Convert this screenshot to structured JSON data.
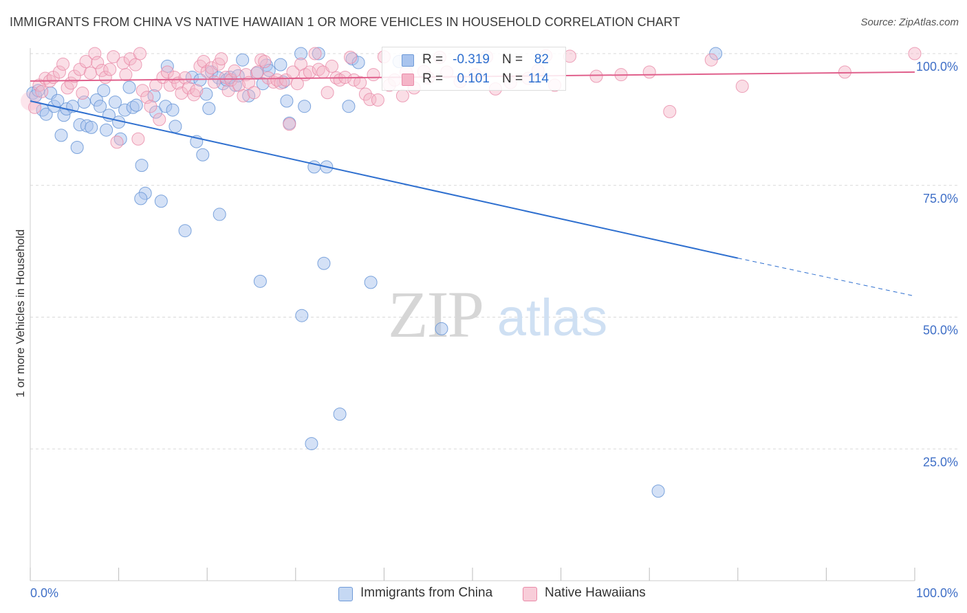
{
  "header": {
    "title": "IMMIGRANTS FROM CHINA VS NATIVE HAWAIIAN 1 OR MORE VEHICLES IN HOUSEHOLD CORRELATION CHART",
    "source": "Source: ZipAtlas.com"
  },
  "watermark": {
    "zip": "ZIP",
    "atlas": "atlas"
  },
  "legend": {
    "r_label": "R =",
    "n_label": "N =",
    "rows": [
      {
        "r": "-0.319",
        "n": "82"
      },
      {
        "r": "0.101",
        "n": "114"
      }
    ]
  },
  "bottom_legend": [
    "Immigrants from China",
    "Native Hawaiians"
  ],
  "colors": {
    "blue_fill": "#a9c4ee",
    "blue_stroke": "#6e9ad8",
    "blue_line": "#2e6fcf",
    "pink_fill": "#f5b5c8",
    "pink_stroke": "#e98aa8",
    "pink_line": "#e0608c",
    "axis_text": "#3f6fc7",
    "grid": "#d9d9d9"
  },
  "chart_data": {
    "type": "scatter",
    "title": "IMMIGRANTS FROM CHINA VS NATIVE HAWAIIAN 1 OR MORE VEHICLES IN HOUSEHOLD CORRELATION CHART",
    "xlabel": "",
    "ylabel": "1 or more Vehicles in Household",
    "xlim": [
      0,
      100
    ],
    "ylim": [
      0,
      104
    ],
    "x_tick_labels": [
      "0.0%",
      "100.0%"
    ],
    "y_ticks": [
      25,
      50,
      75,
      100
    ],
    "y_tick_labels": [
      "25.0%",
      "50.0%",
      "75.0%",
      "100.0%"
    ],
    "grid": "horizontal-dashed",
    "legend_position": "top-center",
    "series": [
      {
        "name": "Immigrants from China",
        "r": -0.319,
        "n": 82,
        "trend": {
          "x0": 0,
          "y0": 91.0,
          "x1": 80,
          "y1": 61.2,
          "dashed_to_x": 100,
          "dashed_to_y": 54.0
        },
        "points": [
          [
            0.3,
            92.5
          ],
          [
            0.6,
            92.0
          ],
          [
            0.9,
            93.0
          ],
          [
            1.4,
            89.3
          ],
          [
            1.8,
            88.5
          ],
          [
            2.3,
            92.5
          ],
          [
            2.7,
            90.0
          ],
          [
            3.1,
            91.1
          ],
          [
            3.5,
            84.5
          ],
          [
            3.8,
            88.3
          ],
          [
            4.1,
            89.5
          ],
          [
            4.8,
            90.0
          ],
          [
            5.3,
            82.2
          ],
          [
            5.6,
            86.5
          ],
          [
            6.1,
            90.8
          ],
          [
            6.4,
            86.3
          ],
          [
            6.9,
            86.0
          ],
          [
            7.5,
            91.2
          ],
          [
            7.9,
            90.0
          ],
          [
            8.3,
            93.0
          ],
          [
            8.6,
            85.5
          ],
          [
            8.9,
            88.3
          ],
          [
            9.6,
            90.8
          ],
          [
            10.0,
            87.0
          ],
          [
            10.2,
            83.8
          ],
          [
            10.7,
            89.3
          ],
          [
            11.2,
            93.6
          ],
          [
            11.6,
            89.8
          ],
          [
            12.0,
            90.2
          ],
          [
            12.6,
            78.8
          ],
          [
            13.0,
            73.5
          ],
          [
            12.5,
            72.5
          ],
          [
            14.0,
            92.0
          ],
          [
            14.2,
            88.9
          ],
          [
            14.8,
            72.0
          ],
          [
            15.3,
            90.0
          ],
          [
            15.5,
            97.6
          ],
          [
            16.1,
            89.3
          ],
          [
            16.4,
            86.2
          ],
          [
            17.5,
            66.4
          ],
          [
            18.3,
            95.5
          ],
          [
            18.8,
            83.3
          ],
          [
            19.2,
            95.0
          ],
          [
            19.5,
            80.8
          ],
          [
            19.9,
            92.3
          ],
          [
            20.2,
            89.6
          ],
          [
            20.5,
            96.5
          ],
          [
            21.3,
            95.4
          ],
          [
            21.4,
            69.5
          ],
          [
            21.8,
            94.3
          ],
          [
            22.2,
            95.0
          ],
          [
            22.6,
            95.5
          ],
          [
            23.2,
            94.0
          ],
          [
            23.5,
            95.8
          ],
          [
            24.0,
            98.8
          ],
          [
            24.7,
            92.0
          ],
          [
            25.6,
            96.3
          ],
          [
            26.0,
            56.8
          ],
          [
            26.3,
            94.3
          ],
          [
            26.7,
            97.8
          ],
          [
            27.0,
            96.8
          ],
          [
            28.6,
            94.6
          ],
          [
            28.3,
            97.9
          ],
          [
            29.0,
            91.0
          ],
          [
            29.3,
            86.8
          ],
          [
            30.6,
            100.0
          ],
          [
            30.7,
            50.3
          ],
          [
            31.0,
            90.0
          ],
          [
            31.8,
            26.0
          ],
          [
            32.1,
            78.5
          ],
          [
            32.6,
            100.0
          ],
          [
            33.2,
            60.2
          ],
          [
            33.5,
            78.5
          ],
          [
            35.0,
            31.6
          ],
          [
            36.0,
            90.0
          ],
          [
            36.4,
            99.0
          ],
          [
            37.1,
            98.3
          ],
          [
            38.5,
            56.6
          ],
          [
            41.7,
            98.5
          ],
          [
            46.5,
            47.8
          ],
          [
            71.0,
            17.0
          ],
          [
            77.5,
            100.0
          ]
        ]
      },
      {
        "name": "Native Hawaiians",
        "r": 0.101,
        "n": 114,
        "trend": {
          "x0": 0,
          "y0": 94.8,
          "x1": 100,
          "y1": 96.5
        },
        "points": [
          [
            0.5,
            89.8
          ],
          [
            1.0,
            94.0
          ],
          [
            1.3,
            92.8
          ],
          [
            1.7,
            95.3
          ],
          [
            2.2,
            94.8
          ],
          [
            2.6,
            95.5
          ],
          [
            3.3,
            96.5
          ],
          [
            3.7,
            98.0
          ],
          [
            4.2,
            93.5
          ],
          [
            4.6,
            94.4
          ],
          [
            5.0,
            95.7
          ],
          [
            5.6,
            97.0
          ],
          [
            5.9,
            92.5
          ],
          [
            6.3,
            98.5
          ],
          [
            6.8,
            96.3
          ],
          [
            7.3,
            100.0
          ],
          [
            7.6,
            98.3
          ],
          [
            8.1,
            96.8
          ],
          [
            8.5,
            95.5
          ],
          [
            9.0,
            97.0
          ],
          [
            9.4,
            99.4
          ],
          [
            9.8,
            83.2
          ],
          [
            10.5,
            98.2
          ],
          [
            10.8,
            96.0
          ],
          [
            11.3,
            99.0
          ],
          [
            11.9,
            97.9
          ],
          [
            12.4,
            100.0
          ],
          [
            12.2,
            83.8
          ],
          [
            12.7,
            93.0
          ],
          [
            13.2,
            91.7
          ],
          [
            13.6,
            90.0
          ],
          [
            14.2,
            94.0
          ],
          [
            14.6,
            87.5
          ],
          [
            15.0,
            95.5
          ],
          [
            15.5,
            96.5
          ],
          [
            15.8,
            94.0
          ],
          [
            16.3,
            95.5
          ],
          [
            16.7,
            94.4
          ],
          [
            17.1,
            92.5
          ],
          [
            17.5,
            95.4
          ],
          [
            17.9,
            93.5
          ],
          [
            18.5,
            92.2
          ],
          [
            18.8,
            93.0
          ],
          [
            19.2,
            97.6
          ],
          [
            19.6,
            98.5
          ],
          [
            20.0,
            96.6
          ],
          [
            20.5,
            97.3
          ],
          [
            20.8,
            94.6
          ],
          [
            21.3,
            98.0
          ],
          [
            21.6,
            99.0
          ],
          [
            22.1,
            95.5
          ],
          [
            22.4,
            93.0
          ],
          [
            22.7,
            95.0
          ],
          [
            23.1,
            96.7
          ],
          [
            23.6,
            94.0
          ],
          [
            24.1,
            92.0
          ],
          [
            24.4,
            96.0
          ],
          [
            24.7,
            94.5
          ],
          [
            25.3,
            92.6
          ],
          [
            25.7,
            96.5
          ],
          [
            26.1,
            98.8
          ],
          [
            26.5,
            98.5
          ],
          [
            26.9,
            95.4
          ],
          [
            27.5,
            94.6
          ],
          [
            27.9,
            95.0
          ],
          [
            28.3,
            94.4
          ],
          [
            28.9,
            95.0
          ],
          [
            29.3,
            86.6
          ],
          [
            29.7,
            96.5
          ],
          [
            30.2,
            94.3
          ],
          [
            30.6,
            98.0
          ],
          [
            31.1,
            96.0
          ],
          [
            31.6,
            96.5
          ],
          [
            32.2,
            100.0
          ],
          [
            32.6,
            97.0
          ],
          [
            33.1,
            96.5
          ],
          [
            33.6,
            92.6
          ],
          [
            34.1,
            97.6
          ],
          [
            34.6,
            95.4
          ],
          [
            35.0,
            95.0
          ],
          [
            35.6,
            95.5
          ],
          [
            36.2,
            99.3
          ],
          [
            36.6,
            95.0
          ],
          [
            37.3,
            94.5
          ],
          [
            37.9,
            92.3
          ],
          [
            38.4,
            91.3
          ],
          [
            38.8,
            96.0
          ],
          [
            39.3,
            91.2
          ],
          [
            40.0,
            99.4
          ],
          [
            40.6,
            94.0
          ],
          [
            41.2,
            95.0
          ],
          [
            42.1,
            92.0
          ],
          [
            42.5,
            96.5
          ],
          [
            43.4,
            93.5
          ],
          [
            44.5,
            96.6
          ],
          [
            45.0,
            95.4
          ],
          [
            46.3,
            99.3
          ],
          [
            47.1,
            96.5
          ],
          [
            48.6,
            94.7
          ],
          [
            50.3,
            96.0
          ],
          [
            51.6,
            99.4
          ],
          [
            52.6,
            93.3
          ],
          [
            54.3,
            94.5
          ],
          [
            56.3,
            95.3
          ],
          [
            57.4,
            96.8
          ],
          [
            58.3,
            99.6
          ],
          [
            59.3,
            94.0
          ],
          [
            61.0,
            99.5
          ],
          [
            64.0,
            95.7
          ],
          [
            66.8,
            96.0
          ],
          [
            70.0,
            96.5
          ],
          [
            72.3,
            89.0
          ],
          [
            77.0,
            98.8
          ],
          [
            80.5,
            93.8
          ],
          [
            92.1,
            96.5
          ],
          [
            100.0,
            100.0
          ]
        ]
      }
    ]
  }
}
